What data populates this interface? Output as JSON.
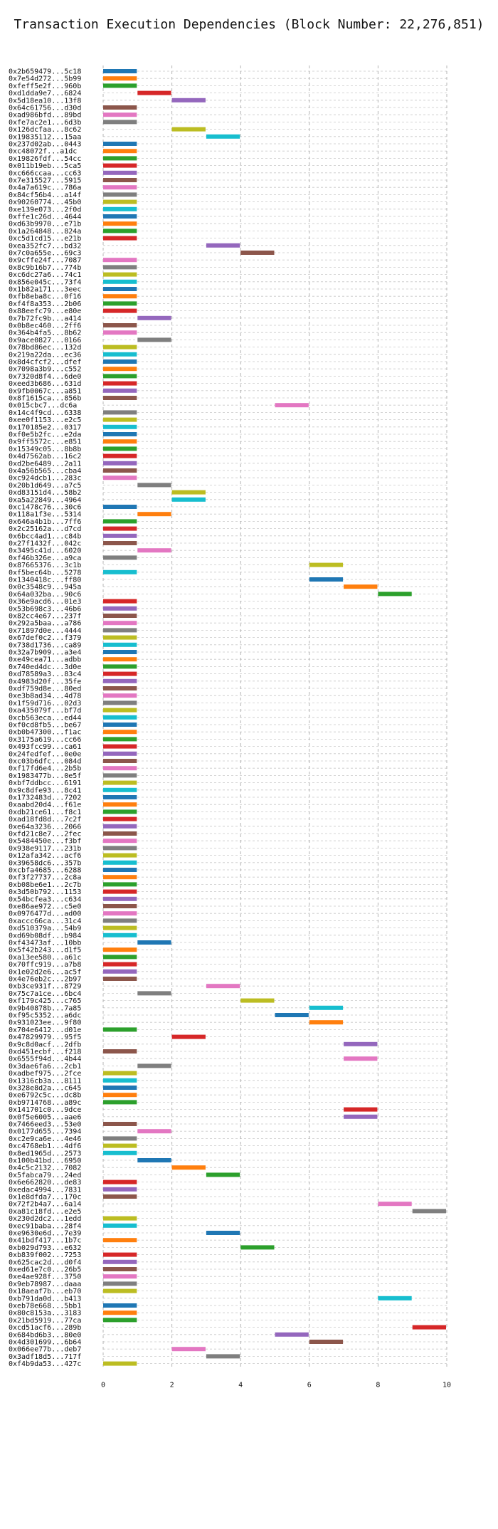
{
  "chart_data": {
    "type": "gantt",
    "title": "Transaction Execution Dependencies (Block Number: 22,276,851)",
    "xlabel": "",
    "ylabel": "",
    "xlim": [
      0,
      10.5
    ],
    "xticks": [
      0,
      2,
      4,
      6,
      8,
      10
    ],
    "grid": true,
    "palette": [
      "#1f77b4",
      "#ff7f0e",
      "#2ca02c",
      "#d62728",
      "#9467bd",
      "#8c564b",
      "#e377c2",
      "#7f7f7f",
      "#bcbd22",
      "#17becf"
    ],
    "tasks": [
      {
        "tx": "0x2b659479...5c18",
        "start": 0,
        "end": 1
      },
      {
        "tx": "0x7e54d272...5b99",
        "start": 0,
        "end": 1
      },
      {
        "tx": "0xfeff5e2f...960b",
        "start": 0,
        "end": 1
      },
      {
        "tx": "0xd1dda9e7...6824",
        "start": 1,
        "end": 2
      },
      {
        "tx": "0x5d18ea10...13f8",
        "start": 2,
        "end": 3
      },
      {
        "tx": "0x64c61756...d30d",
        "start": 0,
        "end": 1
      },
      {
        "tx": "0xad986bfd...89bd",
        "start": 0,
        "end": 1
      },
      {
        "tx": "0xfe7ac2e1...6d3b",
        "start": 0,
        "end": 1
      },
      {
        "tx": "0x126dcfaa...8c62",
        "start": 2,
        "end": 3
      },
      {
        "tx": "0x19835112...15aa",
        "start": 3,
        "end": 4
      },
      {
        "tx": "0x237d02ab...0443",
        "start": 0,
        "end": 1
      },
      {
        "tx": "0xc48072f...a1dc",
        "start": 0,
        "end": 1
      },
      {
        "tx": "0x19826fdf...54cc",
        "start": 0,
        "end": 1
      },
      {
        "tx": "0x011b19eb...5ca5",
        "start": 0,
        "end": 1
      },
      {
        "tx": "0xc666ccaa...cc63",
        "start": 0,
        "end": 1
      },
      {
        "tx": "0x7e315527...5915",
        "start": 0,
        "end": 1
      },
      {
        "tx": "0x4a7a619c...786a",
        "start": 0,
        "end": 1
      },
      {
        "tx": "0x84cf56b4...a14f",
        "start": 0,
        "end": 1
      },
      {
        "tx": "0x90260774...45b0",
        "start": 0,
        "end": 1
      },
      {
        "tx": "0xe139e073...2f0d",
        "start": 0,
        "end": 1
      },
      {
        "tx": "0xffe1c26d...4644",
        "start": 0,
        "end": 1
      },
      {
        "tx": "0xd63b9970...e71b",
        "start": 0,
        "end": 1
      },
      {
        "tx": "0x1a264848...824a",
        "start": 0,
        "end": 1
      },
      {
        "tx": "0xc5d1cd15...e21b",
        "start": 0,
        "end": 1
      },
      {
        "tx": "0xea352fc7...bd32",
        "start": 3,
        "end": 4
      },
      {
        "tx": "0x7c0a655e...69c3",
        "start": 4,
        "end": 5
      },
      {
        "tx": "0x9cffe24f...7087",
        "start": 0,
        "end": 1
      },
      {
        "tx": "0x8c9b16b7...774b",
        "start": 0,
        "end": 1
      },
      {
        "tx": "0xc6dc27a6...74c1",
        "start": 0,
        "end": 1
      },
      {
        "tx": "0x856e045c...73f4",
        "start": 0,
        "end": 1
      },
      {
        "tx": "0x1b82a171...3eec",
        "start": 0,
        "end": 1
      },
      {
        "tx": "0xfb8eba8c...0f16",
        "start": 0,
        "end": 1
      },
      {
        "tx": "0xf4f8a353...2b06",
        "start": 0,
        "end": 1
      },
      {
        "tx": "0x88eefc79...e80e",
        "start": 0,
        "end": 1
      },
      {
        "tx": "0x7b72fc9b...a414",
        "start": 1,
        "end": 2
      },
      {
        "tx": "0x0b8ec460...2ff6",
        "start": 0,
        "end": 1
      },
      {
        "tx": "0x364b4fa5...8b62",
        "start": 0,
        "end": 1
      },
      {
        "tx": "0x9ace0827...0166",
        "start": 1,
        "end": 2
      },
      {
        "tx": "0x78bd86ec...132d",
        "start": 0,
        "end": 1
      },
      {
        "tx": "0x219a22da...ec36",
        "start": 0,
        "end": 1
      },
      {
        "tx": "0x8d4cfcf2...dfef",
        "start": 0,
        "end": 1
      },
      {
        "tx": "0x7098a3b9...c552",
        "start": 0,
        "end": 1
      },
      {
        "tx": "0x7320d8f4...6de0",
        "start": 0,
        "end": 1
      },
      {
        "tx": "0xeed3b686...631d",
        "start": 0,
        "end": 1
      },
      {
        "tx": "0x9fb0067c...a851",
        "start": 0,
        "end": 1
      },
      {
        "tx": "0x8f1615ca...856b",
        "start": 0,
        "end": 1
      },
      {
        "tx": "0x015cbc7...dc6a",
        "start": 5,
        "end": 6
      },
      {
        "tx": "0x14c4f9cd...6338",
        "start": 0,
        "end": 1
      },
      {
        "tx": "0xee0f1153...e2c5",
        "start": 0,
        "end": 1
      },
      {
        "tx": "0x170185e2...0317",
        "start": 0,
        "end": 1
      },
      {
        "tx": "0xf0e5b2fc...e2da",
        "start": 0,
        "end": 1
      },
      {
        "tx": "0x9ff5572c...e851",
        "start": 0,
        "end": 1
      },
      {
        "tx": "0x15349c05...8b8b",
        "start": 0,
        "end": 1
      },
      {
        "tx": "0x4d7562ab...16c2",
        "start": 0,
        "end": 1
      },
      {
        "tx": "0xd2be6489...2a11",
        "start": 0,
        "end": 1
      },
      {
        "tx": "0x4a56b565...cba4",
        "start": 0,
        "end": 1
      },
      {
        "tx": "0xc924dcb1...283c",
        "start": 0,
        "end": 1
      },
      {
        "tx": "0x20b1d649...a7c5",
        "start": 1,
        "end": 2
      },
      {
        "tx": "0xd83151d4...58b2",
        "start": 2,
        "end": 3
      },
      {
        "tx": "0xa5a22849...4964",
        "start": 2,
        "end": 3
      },
      {
        "tx": "0xc1478c76...30c6",
        "start": 0,
        "end": 1
      },
      {
        "tx": "0x118a1f3e...5314",
        "start": 1,
        "end": 2
      },
      {
        "tx": "0x646a4b1b...7ff6",
        "start": 0,
        "end": 1
      },
      {
        "tx": "0x2c25162a...d7cd",
        "start": 0,
        "end": 1
      },
      {
        "tx": "0x6bcc4ad1...c84b",
        "start": 0,
        "end": 1
      },
      {
        "tx": "0x27f1432f...042c",
        "start": 0,
        "end": 1
      },
      {
        "tx": "0x3495c41d...6020",
        "start": 1,
        "end": 2
      },
      {
        "tx": "0xf46b326e...a9ca",
        "start": 0,
        "end": 1
      },
      {
        "tx": "0x87665376...3c1b",
        "start": 6,
        "end": 7
      },
      {
        "tx": "0xf5bec64b...5278",
        "start": 0,
        "end": 1
      },
      {
        "tx": "0x1340418c...ff80",
        "start": 6,
        "end": 7
      },
      {
        "tx": "0x0c3548c9...945a",
        "start": 7,
        "end": 8
      },
      {
        "tx": "0x64a032ba...90c6",
        "start": 8,
        "end": 9
      },
      {
        "tx": "0x36e9acd6...01e3",
        "start": 0,
        "end": 1
      },
      {
        "tx": "0x53b698c3...46b6",
        "start": 0,
        "end": 1
      },
      {
        "tx": "0x82cc4e67...237f",
        "start": 0,
        "end": 1
      },
      {
        "tx": "0x292a5baa...a786",
        "start": 0,
        "end": 1
      },
      {
        "tx": "0x71897d0e...4444",
        "start": 0,
        "end": 1
      },
      {
        "tx": "0x67def0c2...f379",
        "start": 0,
        "end": 1
      },
      {
        "tx": "0x738d1736...ca89",
        "start": 0,
        "end": 1
      },
      {
        "tx": "0x32a7b909...a3e4",
        "start": 0,
        "end": 1
      },
      {
        "tx": "0xe49cea71...adbb",
        "start": 0,
        "end": 1
      },
      {
        "tx": "0x740ed4dc...3d0e",
        "start": 0,
        "end": 1
      },
      {
        "tx": "0xd78589a3...83c4",
        "start": 0,
        "end": 1
      },
      {
        "tx": "0x4983d20f...35fe",
        "start": 0,
        "end": 1
      },
      {
        "tx": "0xdf759d8e...80ed",
        "start": 0,
        "end": 1
      },
      {
        "tx": "0xe3b8ad34...4d78",
        "start": 0,
        "end": 1
      },
      {
        "tx": "0x1f59d716...02d3",
        "start": 0,
        "end": 1
      },
      {
        "tx": "0xa435079f...bf7d",
        "start": 0,
        "end": 1
      },
      {
        "tx": "0xcb563eca...ed44",
        "start": 0,
        "end": 1
      },
      {
        "tx": "0xf0cd8fb5...be67",
        "start": 0,
        "end": 1
      },
      {
        "tx": "0xb0b47300...f1ac",
        "start": 0,
        "end": 1
      },
      {
        "tx": "0x3175a619...cc66",
        "start": 0,
        "end": 1
      },
      {
        "tx": "0x493fcc99...ca61",
        "start": 0,
        "end": 1
      },
      {
        "tx": "0x24fedfef...0e0e",
        "start": 0,
        "end": 1
      },
      {
        "tx": "0xc03b6dfc...084d",
        "start": 0,
        "end": 1
      },
      {
        "tx": "0xf17fd6e4...2b5b",
        "start": 0,
        "end": 1
      },
      {
        "tx": "0x1983477b...0e5f",
        "start": 0,
        "end": 1
      },
      {
        "tx": "0xbf7ddbcc...6191",
        "start": 0,
        "end": 1
      },
      {
        "tx": "0x9c8dfe93...8c41",
        "start": 0,
        "end": 1
      },
      {
        "tx": "0x1732483d...7202",
        "start": 0,
        "end": 1
      },
      {
        "tx": "0xaabd20d4...f61e",
        "start": 0,
        "end": 1
      },
      {
        "tx": "0xdb21ce61...f8c1",
        "start": 0,
        "end": 1
      },
      {
        "tx": "0xad18fd8d...7c2f",
        "start": 0,
        "end": 1
      },
      {
        "tx": "0xe64a3236...2066",
        "start": 0,
        "end": 1
      },
      {
        "tx": "0xfd21c8e7...2fec",
        "start": 0,
        "end": 1
      },
      {
        "tx": "0x5484450e...f3bf",
        "start": 0,
        "end": 1
      },
      {
        "tx": "0x938e9117...231b",
        "start": 0,
        "end": 1
      },
      {
        "tx": "0x12afa342...acf6",
        "start": 0,
        "end": 1
      },
      {
        "tx": "0x39658dc6...357b",
        "start": 0,
        "end": 1
      },
      {
        "tx": "0xcbfa4685...6288",
        "start": 0,
        "end": 1
      },
      {
        "tx": "0xf3f27737...2c8a",
        "start": 0,
        "end": 1
      },
      {
        "tx": "0xb08be6e1...2c7b",
        "start": 0,
        "end": 1
      },
      {
        "tx": "0x3d50b792...1153",
        "start": 0,
        "end": 1
      },
      {
        "tx": "0x54bcfea3...c634",
        "start": 0,
        "end": 1
      },
      {
        "tx": "0xe86ae972...c5e0",
        "start": 0,
        "end": 1
      },
      {
        "tx": "0x0976477d...ad00",
        "start": 0,
        "end": 1
      },
      {
        "tx": "0xaccc66ca...31c4",
        "start": 0,
        "end": 1
      },
      {
        "tx": "0xd510379a...54b9",
        "start": 0,
        "end": 1
      },
      {
        "tx": "0xd69b08df...b984",
        "start": 0,
        "end": 1
      },
      {
        "tx": "0xf43473af...10bb",
        "start": 1,
        "end": 2
      },
      {
        "tx": "0x5f42b243...d1f5",
        "start": 0,
        "end": 1
      },
      {
        "tx": "0xa13ee580...a61c",
        "start": 0,
        "end": 1
      },
      {
        "tx": "0x70ffc919...a7b8",
        "start": 0,
        "end": 1
      },
      {
        "tx": "0x1e02d2e6...ac5f",
        "start": 0,
        "end": 1
      },
      {
        "tx": "0x4e76eb2c...2b97",
        "start": 0,
        "end": 1
      },
      {
        "tx": "0xb3ce931f...8729",
        "start": 3,
        "end": 4
      },
      {
        "tx": "0x75c7a1ce...6bc4",
        "start": 1,
        "end": 2
      },
      {
        "tx": "0xf179c425...c765",
        "start": 4,
        "end": 5
      },
      {
        "tx": "0x9b40878b...7a85",
        "start": 6,
        "end": 7
      },
      {
        "tx": "0xf95c5352...a6dc",
        "start": 5,
        "end": 6
      },
      {
        "tx": "0x931023ee...9f80",
        "start": 6,
        "end": 7
      },
      {
        "tx": "0x704e6412...d01e",
        "start": 0,
        "end": 1
      },
      {
        "tx": "0x47829979...95f5",
        "start": 2,
        "end": 3
      },
      {
        "tx": "0x9c8d0acf...2dfb",
        "start": 7,
        "end": 8
      },
      {
        "tx": "0xd451ecbf...f218",
        "start": 0,
        "end": 1
      },
      {
        "tx": "0x6555f94d...4b44",
        "start": 7,
        "end": 8
      },
      {
        "tx": "0x3dae6fa6...2cb1",
        "start": 1,
        "end": 2
      },
      {
        "tx": "0xadbef975...2fce",
        "start": 0,
        "end": 1
      },
      {
        "tx": "0x1316cb3a...8111",
        "start": 0,
        "end": 1
      },
      {
        "tx": "0x328e8d2a...c645",
        "start": 0,
        "end": 1
      },
      {
        "tx": "0xe6792c5c...dc8b",
        "start": 0,
        "end": 1
      },
      {
        "tx": "0xb9714768...a89c",
        "start": 0,
        "end": 1
      },
      {
        "tx": "0x141701c0...9dce",
        "start": 7,
        "end": 8
      },
      {
        "tx": "0x0f5e6005...aae6",
        "start": 7,
        "end": 8
      },
      {
        "tx": "0x7466eed3...53e0",
        "start": 0,
        "end": 1
      },
      {
        "tx": "0x0177d655...7394",
        "start": 1,
        "end": 2
      },
      {
        "tx": "0xc2e9ca6e...4e46",
        "start": 0,
        "end": 1
      },
      {
        "tx": "0xc4768eb1...4df6",
        "start": 0,
        "end": 1
      },
      {
        "tx": "0x8ed1965d...2573",
        "start": 0,
        "end": 1
      },
      {
        "tx": "0x100b41bd...6950",
        "start": 1,
        "end": 2
      },
      {
        "tx": "0x4c5c2132...7082",
        "start": 2,
        "end": 3
      },
      {
        "tx": "0x5fabca79...24ed",
        "start": 3,
        "end": 4
      },
      {
        "tx": "0x6e662820...de83",
        "start": 0,
        "end": 1
      },
      {
        "tx": "0xedac4994...7831",
        "start": 0,
        "end": 1
      },
      {
        "tx": "0x1e8dfda7...170c",
        "start": 0,
        "end": 1
      },
      {
        "tx": "0x72f2b4a7...6a14",
        "start": 8,
        "end": 9
      },
      {
        "tx": "0xa81c18fd...e2e5",
        "start": 9,
        "end": 10
      },
      {
        "tx": "0x230d2dc2...1edd",
        "start": 0,
        "end": 1
      },
      {
        "tx": "0xec91baba...28f4",
        "start": 0,
        "end": 1
      },
      {
        "tx": "0xe9630e6d...7e39",
        "start": 3,
        "end": 4
      },
      {
        "tx": "0x41bdf417...1b7c",
        "start": 0,
        "end": 1
      },
      {
        "tx": "0xb029d793...e632",
        "start": 4,
        "end": 5
      },
      {
        "tx": "0xb839f002...7253",
        "start": 0,
        "end": 1
      },
      {
        "tx": "0x625cac2d...d0f4",
        "start": 0,
        "end": 1
      },
      {
        "tx": "0xed61e7c0...26b5",
        "start": 0,
        "end": 1
      },
      {
        "tx": "0xe4ae928f...3750",
        "start": 0,
        "end": 1
      },
      {
        "tx": "0x9eb78987...daaa",
        "start": 0,
        "end": 1
      },
      {
        "tx": "0x18aeaf7b...eb70",
        "start": 0,
        "end": 1
      },
      {
        "tx": "0xb791da0d...b413",
        "start": 8,
        "end": 9
      },
      {
        "tx": "0xeb78e668...5bb1",
        "start": 0,
        "end": 1
      },
      {
        "tx": "0x80c8153a...3183",
        "start": 0,
        "end": 1
      },
      {
        "tx": "0x21bd5919...77ca",
        "start": 0,
        "end": 1
      },
      {
        "tx": "0xcd51acf6...289b",
        "start": 9,
        "end": 10
      },
      {
        "tx": "0x684bd6b3...80e0",
        "start": 5,
        "end": 6
      },
      {
        "tx": "0x4d301699...6b64",
        "start": 6,
        "end": 7
      },
      {
        "tx": "0x066ee77b...deb7",
        "start": 2,
        "end": 3
      },
      {
        "tx": "0x3adf18d5...717f",
        "start": 3,
        "end": 4
      },
      {
        "tx": "0xf4b9da53...427c",
        "start": 0,
        "end": 1
      }
    ]
  }
}
